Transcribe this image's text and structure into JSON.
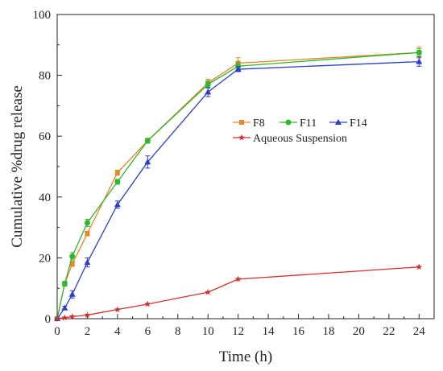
{
  "chart_data": {
    "type": "line",
    "title": "",
    "xlabel": "Time (h)",
    "ylabel": "Cumulative %drug release",
    "xlim": [
      0,
      25
    ],
    "ylim": [
      0,
      100
    ],
    "xticks": [
      0,
      2,
      4,
      6,
      8,
      10,
      12,
      14,
      16,
      18,
      20,
      22,
      24
    ],
    "yticks": [
      0,
      20,
      40,
      60,
      80,
      100
    ],
    "grid": false,
    "legend_position": "center-right",
    "series": [
      {
        "name": "F8",
        "color": "#e8862a",
        "marker": "square",
        "x": [
          0,
          0.5,
          1,
          2,
          4,
          6,
          10,
          12,
          24
        ],
        "y": [
          0,
          11.5,
          18,
          28,
          48,
          58.5,
          77.5,
          84,
          87.5
        ],
        "err": [
          0,
          0.8,
          0.8,
          0.8,
          0.8,
          0.8,
          1.2,
          1.8,
          1.8
        ]
      },
      {
        "name": "F11",
        "color": "#2db82d",
        "marker": "circle",
        "x": [
          0,
          0.5,
          1,
          2,
          4,
          6,
          10,
          12,
          24
        ],
        "y": [
          0,
          11.5,
          20.5,
          31.5,
          45,
          58.5,
          77,
          83,
          87.5
        ],
        "err": [
          0,
          0.8,
          1.2,
          1.2,
          0.8,
          0.8,
          1.2,
          1.2,
          1.2
        ]
      },
      {
        "name": "F14",
        "color": "#2d3fc8",
        "marker": "triangle",
        "x": [
          0,
          0.5,
          1,
          2,
          4,
          6,
          10,
          12,
          24
        ],
        "y": [
          0,
          3.5,
          8,
          18.5,
          37.5,
          51.5,
          74.5,
          82,
          84.5
        ],
        "err": [
          0,
          0.6,
          1.2,
          1.5,
          1.2,
          2,
          1.5,
          0.8,
          1.5
        ]
      },
      {
        "name": "Aqueous Suspension",
        "color": "#d03030",
        "marker": "star",
        "x": [
          0,
          0.5,
          1,
          2,
          4,
          6,
          10,
          12,
          24
        ],
        "y": [
          0,
          0.3,
          0.7,
          1.2,
          3,
          4.8,
          8.7,
          13,
          17
        ],
        "err": [
          0,
          0,
          0,
          0,
          0,
          0,
          0,
          0,
          0
        ]
      }
    ]
  }
}
